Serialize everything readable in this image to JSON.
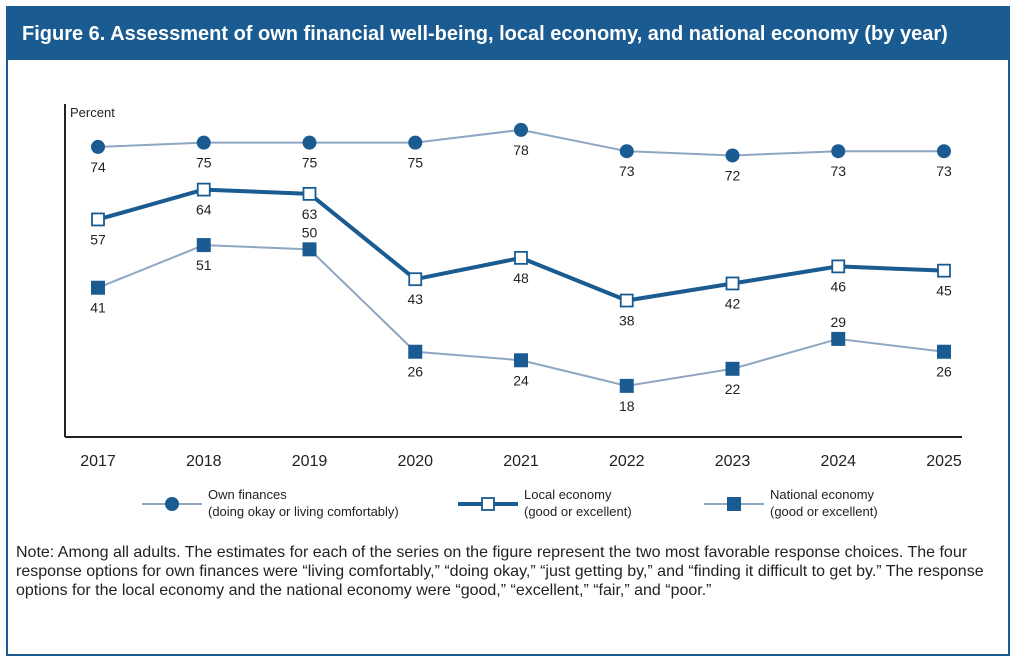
{
  "header": {
    "title": "Figure 6. Assessment of own financial well-being, local economy, and national economy (by year)"
  },
  "colors": {
    "frame": "#1a5c91",
    "dark_series": "#1a5c91",
    "light_series": "#8fa6c2",
    "axis": "#222222"
  },
  "chart_data": {
    "type": "line",
    "ylabel": "Percent",
    "x": [
      "2017",
      "2018",
      "2019",
      "2020",
      "2021",
      "2022",
      "2023",
      "2024",
      "2025"
    ],
    "ylim": [
      10,
      85
    ],
    "grid": false,
    "legend_position": "bottom",
    "series": [
      {
        "key": "own",
        "name": "Own finances",
        "name_sub": "(doing okay or living comfortably)",
        "marker": "filled-circle",
        "line_style": "light",
        "label_position": [
          "below",
          "below",
          "below",
          "below",
          "below",
          "below",
          "below",
          "below",
          "below"
        ],
        "values": [
          74,
          75,
          75,
          75,
          78,
          73,
          72,
          73,
          73
        ]
      },
      {
        "key": "local",
        "name": "Local economy",
        "name_sub": "(good or excellent)",
        "marker": "open-square",
        "line_style": "dark-thick",
        "label_position": [
          "below",
          "below",
          "below",
          "below",
          "below",
          "below",
          "below",
          "below",
          "below"
        ],
        "values": [
          57,
          64,
          63,
          43,
          48,
          38,
          42,
          46,
          45
        ]
      },
      {
        "key": "national",
        "name": "National economy",
        "name_sub": "(good or excellent)",
        "marker": "filled-square",
        "line_style": "light",
        "label_position": [
          "below",
          "below",
          "above",
          "below",
          "below",
          "below",
          "below",
          "above",
          "below"
        ],
        "values": [
          41,
          51,
          50,
          26,
          24,
          18,
          22,
          29,
          26
        ]
      }
    ]
  },
  "note": "Note: Among all adults. The estimates for each of the series on the figure represent the two most favorable response choices. The four response options for own finances were “living comfortably,” “doing okay,” “just getting by,” and “finding it difficult to get by.” The response options for the local economy and the national economy were “good,” “excel­lent,” “fair,” and “poor.”"
}
